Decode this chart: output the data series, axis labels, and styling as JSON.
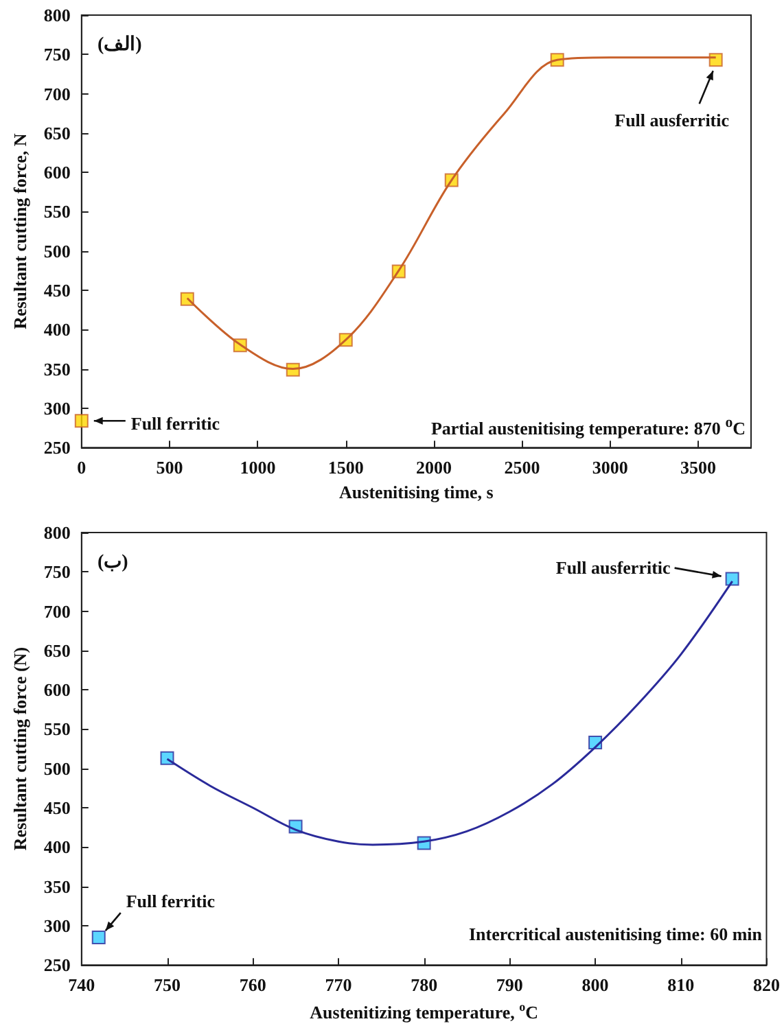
{
  "chart_data": [
    {
      "type": "scatter",
      "title": "(الف)",
      "xlabel": "Austenitising time, s",
      "ylabel": "Resultant cutting force, N",
      "grid": false,
      "xlim": [
        0,
        3800
      ],
      "xticks": [
        0,
        500,
        1000,
        1500,
        2000,
        2500,
        3000,
        3500
      ],
      "ylim": [
        250,
        800
      ],
      "yticks": [
        250,
        300,
        350,
        400,
        450,
        500,
        550,
        600,
        650,
        700,
        750,
        800
      ],
      "series": [
        {
          "type": "line",
          "marker": "none",
          "color": "#c8602a",
          "x": [
            600,
            900,
            1200,
            1500,
            1800,
            2100,
            2400,
            2700,
            3000,
            3600
          ],
          "values": [
            440,
            381,
            350,
            387,
            475,
            590,
            675,
            743,
            746,
            746
          ]
        },
        {
          "marker": "square",
          "color": "#ffd700",
          "x": [
            0,
            600,
            900,
            1200,
            1500,
            1800,
            2100,
            2700,
            3600
          ],
          "values": [
            284,
            439,
            380,
            349,
            387,
            474,
            590,
            743,
            743
          ]
        }
      ],
      "annotations": [
        {
          "text": "Full ferritic",
          "x": 0,
          "y": 284
        },
        {
          "text": "Full ausferritic",
          "x": 3600,
          "y": 743
        },
        "Partial austenitising temperature: 870 $^{o}$C"
      ]
    },
    {
      "type": "scatter",
      "title": "(ب)",
      "xlabel": "Austenitizing temperature, $^{o}$C",
      "ylabel": "Resultant cutting force (N)",
      "grid": false,
      "xlim": [
        740,
        820
      ],
      "xticks": [
        740,
        750,
        760,
        770,
        780,
        790,
        800,
        810,
        820
      ],
      "ylim": [
        250,
        800
      ],
      "yticks": [
        250,
        300,
        350,
        400,
        450,
        500,
        550,
        600,
        650,
        700,
        750,
        800
      ],
      "series": [
        {
          "type": "line",
          "marker": "none",
          "color": "#2a2a9a",
          "x": [
            750,
            755,
            760,
            765,
            770,
            774,
            780,
            785,
            790,
            795,
            800,
            805,
            810,
            816
          ],
          "values": [
            512,
            478,
            450,
            422,
            407,
            403,
            407,
            420,
            445,
            480,
            527,
            582,
            645,
            738
          ]
        },
        {
          "marker": "square",
          "color": "#33ccff",
          "x": [
            742,
            750,
            765,
            780,
            800,
            816
          ],
          "values": [
            285,
            513,
            426,
            405,
            533,
            741
          ]
        }
      ],
      "annotations": [
        {
          "text": "Full ferritic",
          "x": 742,
          "y": 285
        },
        {
          "text": "Full ausferritic",
          "x": 816,
          "y": 741
        },
        "Intercritical austenitising time: 60 min"
      ]
    }
  ]
}
